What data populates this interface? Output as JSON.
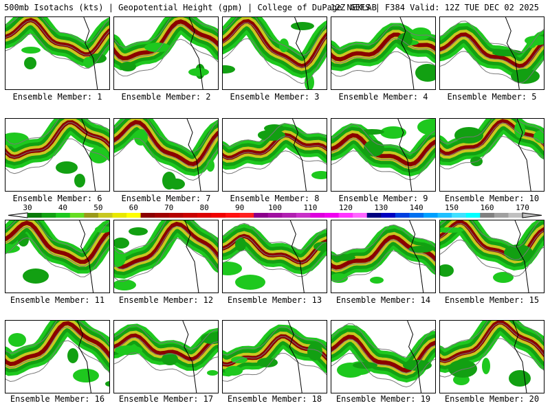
{
  "header": {
    "left": "500mb Isotachs (kts) | Geopotential Height (gpm) | College of DuPage NEXLAB",
    "right": "12Z GEFS | F384 Valid: 12Z TUE DEC 02 2025"
  },
  "members": [
    {
      "label": "Ensemble Member: 1"
    },
    {
      "label": "Ensemble Member: 2"
    },
    {
      "label": "Ensemble Member: 3"
    },
    {
      "label": "Ensemble Member: 4"
    },
    {
      "label": "Ensemble Member: 5"
    },
    {
      "label": "Ensemble Member: 6"
    },
    {
      "label": "Ensemble Member: 7"
    },
    {
      "label": "Ensemble Member: 8"
    },
    {
      "label": "Ensemble Member: 9"
    },
    {
      "label": "Ensemble Member: 10"
    },
    {
      "label": "Ensemble Member: 11"
    },
    {
      "label": "Ensemble Member: 12"
    },
    {
      "label": "Ensemble Member: 13"
    },
    {
      "label": "Ensemble Member: 14"
    },
    {
      "label": "Ensemble Member: 15"
    },
    {
      "label": "Ensemble Member: 16"
    },
    {
      "label": "Ensemble Member: 17"
    },
    {
      "label": "Ensemble Member: 18"
    },
    {
      "label": "Ensemble Member: 19"
    },
    {
      "label": "Ensemble Member: 20"
    }
  ],
  "colorbar": {
    "labels": [
      "30",
      "40",
      "50",
      "60",
      "70",
      "80",
      "90",
      "100",
      "110",
      "120",
      "130",
      "140",
      "150",
      "160",
      "170"
    ],
    "colors": [
      "#0a7a0a",
      "#12a012",
      "#1ec81e",
      "#66dd22",
      "#9a9a1a",
      "#c8c820",
      "#e8e800",
      "#ffff00",
      "#8b0000",
      "#a00000",
      "#b40000",
      "#c80000",
      "#dc0000",
      "#f00000",
      "#ff1010",
      "#ff2020",
      "#8b008b",
      "#a010a0",
      "#b020b0",
      "#c830c8",
      "#dd00dd",
      "#f000f0",
      "#ff33ff",
      "#ff66ff",
      "#000080",
      "#0000c0",
      "#0040e0",
      "#0070f0",
      "#00a0ff",
      "#20c0ff",
      "#40e0ff",
      "#00ffff",
      "#808080",
      "#a0a0a0",
      "#c0c0c0"
    ]
  }
}
